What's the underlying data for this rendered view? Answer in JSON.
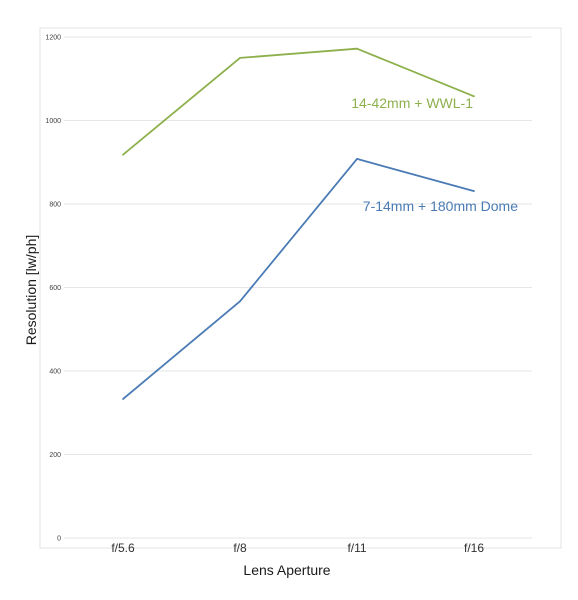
{
  "chart_data": {
    "type": "line",
    "title": "",
    "xlabel": "Lens Aperture",
    "ylabel": "Resolution [lw/ph]",
    "categories": [
      "f/5.6",
      "f/8",
      "f/11",
      "f/16"
    ],
    "ylim": [
      0,
      1200
    ],
    "yticks": [
      0,
      200,
      400,
      600,
      800,
      1000,
      1200
    ],
    "grid": true,
    "series": [
      {
        "name": "14-42mm + WWL-1",
        "color": "#8db04c",
        "values": [
          918,
          1150,
          1172,
          1058
        ]
      },
      {
        "name": "7-14mm + 180mm Dome",
        "color": "#4a7bb5",
        "values": [
          333,
          567,
          908,
          831
        ]
      }
    ]
  }
}
